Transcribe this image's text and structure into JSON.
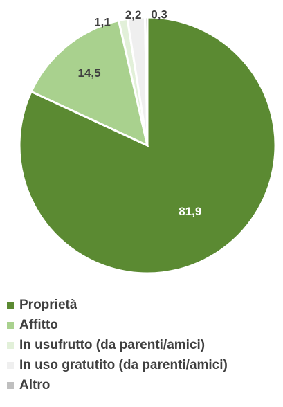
{
  "chart_data": {
    "type": "pie",
    "title": "",
    "categories": [
      "Proprietà",
      "Affitto",
      "In usufrutto (da parenti/amici)",
      "In uso gratutito (da parenti/amici)",
      "Altro"
    ],
    "values": [
      81.9,
      14.5,
      1.1,
      2.2,
      0.3
    ],
    "value_labels": [
      "81,9",
      "14,5",
      "1,1",
      "2,2",
      "0,3"
    ],
    "colors": [
      "#5b8a32",
      "#a9d18e",
      "#e2f0d9",
      "#efefef",
      "#bfbfbf"
    ],
    "legend_position": "bottom",
    "start_angle": "12 o'clock",
    "direction": "clockwise"
  }
}
